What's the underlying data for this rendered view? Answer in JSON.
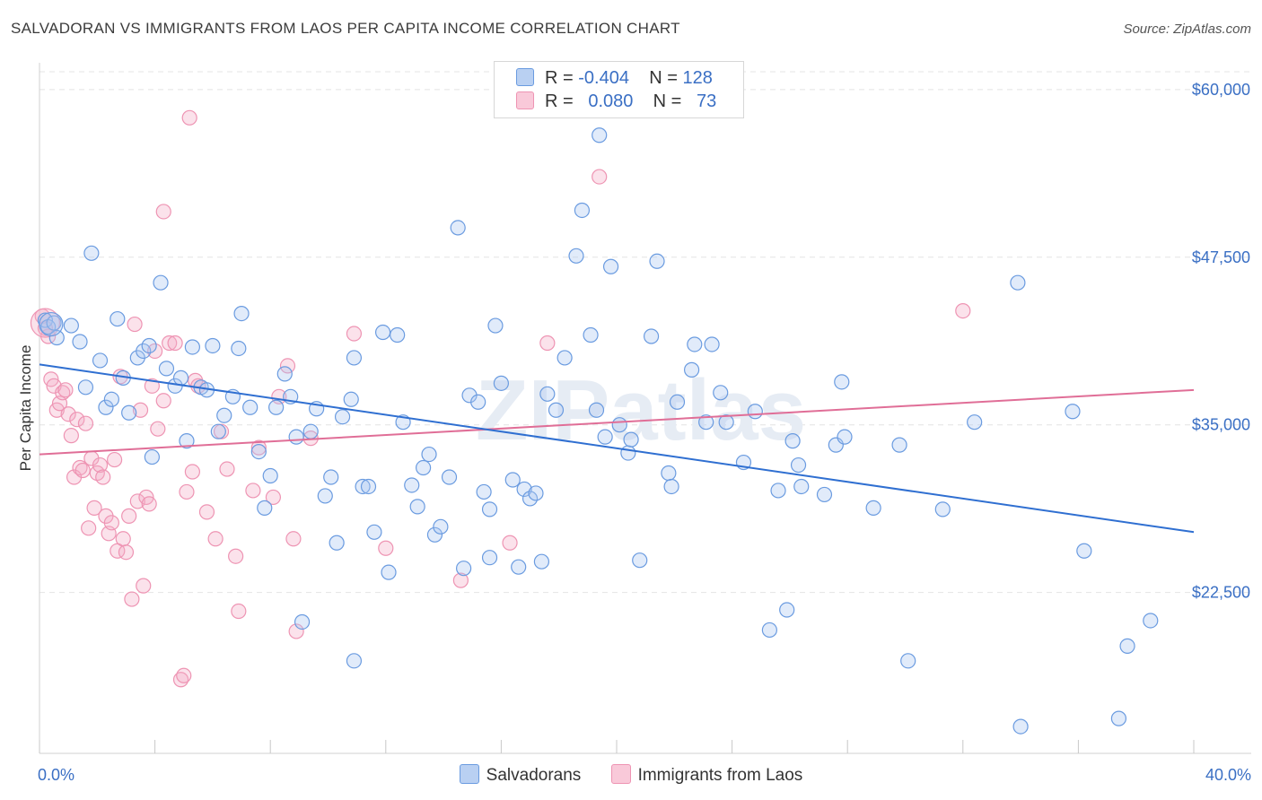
{
  "title": "SALVADORAN VS IMMIGRANTS FROM LAOS PER CAPITA INCOME CORRELATION CHART",
  "source": "Source: ZipAtlas.com",
  "watermark": "ZIPatlas",
  "legend": {
    "rows": [
      {
        "r_label": "R =",
        "r_value": "-0.404",
        "n_label": "N =",
        "n_value": "128"
      },
      {
        "r_label": "R =",
        "r_value": "0.080",
        "n_label": "N =",
        "n_value": "73"
      }
    ]
  },
  "bottom_legend": [
    "Salvadorans",
    "Immigrants from Laos"
  ],
  "colors": {
    "blue": "#6a9be0",
    "blue_line": "#2f6fd1",
    "pink": "#ee94b3",
    "pink_line": "#e06e97",
    "tick_label": "#3a6fc4"
  },
  "chart_data": {
    "type": "scatter",
    "title": "SALVADORAN VS IMMIGRANTS FROM LAOS PER CAPITA INCOME CORRELATION CHART",
    "xlabel": "",
    "ylabel": "Per Capita Income",
    "xlim": [
      0,
      40
    ],
    "ylim": [
      10500,
      62000
    ],
    "x_tick_labels": [
      "0.0%",
      "40.0%"
    ],
    "y_ticks": [
      22500,
      35000,
      47500,
      60000
    ],
    "y_tick_labels": [
      "$22,500",
      "$35,000",
      "$47,500",
      "$60,000"
    ],
    "grid": true,
    "series": [
      {
        "name": "Salvadorans",
        "color": "#6a9be0",
        "trend": {
          "x": [
            0,
            40
          ],
          "y": [
            39500,
            27000
          ]
        },
        "points": [
          [
            0.2,
            42.8
          ],
          [
            0.3,
            42.3
          ],
          [
            0.5,
            42.6
          ],
          [
            0.6,
            41.5
          ],
          [
            1.1,
            42.4
          ],
          [
            1.4,
            41.2
          ],
          [
            1.6,
            37.8
          ],
          [
            1.8,
            47.8
          ],
          [
            2.1,
            39.8
          ],
          [
            2.3,
            36.3
          ],
          [
            2.5,
            36.9
          ],
          [
            2.7,
            42.9
          ],
          [
            2.9,
            38.5
          ],
          [
            3.1,
            35.9
          ],
          [
            3.4,
            40.0
          ],
          [
            3.6,
            40.5
          ],
          [
            3.8,
            40.9
          ],
          [
            3.9,
            32.6
          ],
          [
            4.2,
            45.6
          ],
          [
            4.4,
            39.2
          ],
          [
            4.7,
            37.9
          ],
          [
            4.9,
            38.5
          ],
          [
            5.1,
            33.8
          ],
          [
            5.3,
            40.8
          ],
          [
            5.6,
            37.8
          ],
          [
            5.8,
            37.6
          ],
          [
            6.0,
            40.9
          ],
          [
            6.2,
            34.5
          ],
          [
            6.4,
            35.7
          ],
          [
            6.7,
            37.1
          ],
          [
            6.9,
            40.7
          ],
          [
            7.0,
            43.3
          ],
          [
            7.3,
            36.3
          ],
          [
            7.6,
            33.0
          ],
          [
            7.8,
            28.8
          ],
          [
            8.0,
            31.2
          ],
          [
            8.2,
            36.3
          ],
          [
            8.5,
            38.8
          ],
          [
            8.7,
            37.1
          ],
          [
            8.9,
            34.1
          ],
          [
            9.1,
            20.3
          ],
          [
            9.4,
            34.5
          ],
          [
            9.6,
            36.2
          ],
          [
            9.9,
            29.7
          ],
          [
            10.1,
            31.1
          ],
          [
            10.3,
            26.2
          ],
          [
            10.5,
            35.6
          ],
          [
            10.8,
            36.9
          ],
          [
            10.9,
            40.0
          ],
          [
            11.2,
            30.4
          ],
          [
            11.4,
            30.4
          ],
          [
            11.6,
            27.0
          ],
          [
            11.9,
            41.9
          ],
          [
            12.1,
            24.0
          ],
          [
            12.4,
            41.7
          ],
          [
            12.6,
            35.2
          ],
          [
            12.9,
            30.5
          ],
          [
            13.1,
            28.9
          ],
          [
            13.3,
            31.8
          ],
          [
            13.5,
            32.8
          ],
          [
            13.7,
            26.8
          ],
          [
            13.9,
            27.4
          ],
          [
            14.2,
            31.1
          ],
          [
            14.5,
            49.7
          ],
          [
            14.7,
            24.3
          ],
          [
            14.9,
            37.2
          ],
          [
            15.2,
            36.7
          ],
          [
            15.4,
            30.0
          ],
          [
            15.6,
            28.7
          ],
          [
            15.8,
            42.4
          ],
          [
            16.0,
            38.1
          ],
          [
            16.4,
            30.9
          ],
          [
            16.6,
            24.4
          ],
          [
            16.8,
            30.2
          ],
          [
            17.0,
            29.5
          ],
          [
            17.2,
            29.9
          ],
          [
            17.4,
            24.8
          ],
          [
            17.6,
            37.3
          ],
          [
            17.9,
            36.1
          ],
          [
            18.2,
            40.0
          ],
          [
            18.6,
            47.6
          ],
          [
            18.8,
            51.0
          ],
          [
            19.1,
            41.7
          ],
          [
            19.3,
            36.1
          ],
          [
            19.4,
            56.6
          ],
          [
            19.6,
            34.1
          ],
          [
            19.8,
            46.8
          ],
          [
            20.1,
            35.0
          ],
          [
            20.4,
            32.9
          ],
          [
            20.8,
            24.9
          ],
          [
            21.2,
            41.6
          ],
          [
            21.4,
            47.2
          ],
          [
            21.8,
            31.4
          ],
          [
            21.9,
            30.4
          ],
          [
            22.1,
            36.7
          ],
          [
            22.6,
            39.1
          ],
          [
            22.7,
            41.0
          ],
          [
            23.1,
            35.2
          ],
          [
            23.3,
            41.0
          ],
          [
            23.6,
            37.4
          ],
          [
            23.8,
            35.2
          ],
          [
            24.4,
            32.2
          ],
          [
            24.8,
            36.0
          ],
          [
            25.3,
            19.7
          ],
          [
            25.6,
            30.1
          ],
          [
            25.9,
            21.2
          ],
          [
            26.1,
            33.8
          ],
          [
            26.3,
            32.0
          ],
          [
            26.4,
            30.4
          ],
          [
            27.2,
            29.8
          ],
          [
            27.6,
            33.5
          ],
          [
            27.8,
            38.2
          ],
          [
            27.9,
            34.1
          ],
          [
            28.9,
            28.8
          ],
          [
            29.8,
            33.5
          ],
          [
            30.1,
            17.4
          ],
          [
            31.3,
            28.7
          ],
          [
            32.4,
            35.2
          ],
          [
            33.9,
            45.6
          ],
          [
            34.0,
            12.5
          ],
          [
            35.8,
            36.0
          ],
          [
            36.2,
            25.6
          ],
          [
            37.4,
            13.1
          ],
          [
            37.7,
            18.5
          ],
          [
            38.5,
            20.4
          ],
          [
            20.5,
            33.9
          ],
          [
            15.6,
            25.1
          ],
          [
            10.9,
            17.4
          ]
        ]
      },
      {
        "name": "Immigrants from Laos",
        "color": "#ee94b3",
        "trend": {
          "x": [
            0,
            40
          ],
          "y": [
            32800,
            37600
          ]
        },
        "points": [
          [
            0.1,
            43.1
          ],
          [
            0.2,
            42.2
          ],
          [
            0.3,
            41.6
          ],
          [
            0.4,
            38.4
          ],
          [
            0.5,
            37.9
          ],
          [
            0.6,
            36.1
          ],
          [
            0.7,
            36.6
          ],
          [
            0.8,
            37.4
          ],
          [
            0.9,
            37.6
          ],
          [
            1.0,
            35.8
          ],
          [
            1.1,
            34.2
          ],
          [
            1.2,
            31.1
          ],
          [
            1.3,
            35.4
          ],
          [
            1.4,
            31.8
          ],
          [
            1.5,
            31.6
          ],
          [
            1.6,
            35.1
          ],
          [
            1.7,
            27.3
          ],
          [
            1.8,
            32.5
          ],
          [
            1.9,
            28.8
          ],
          [
            2.0,
            31.4
          ],
          [
            2.1,
            32.0
          ],
          [
            2.2,
            31.1
          ],
          [
            2.3,
            28.2
          ],
          [
            2.4,
            26.9
          ],
          [
            2.5,
            27.7
          ],
          [
            2.6,
            32.4
          ],
          [
            2.7,
            25.6
          ],
          [
            2.8,
            38.6
          ],
          [
            2.9,
            26.5
          ],
          [
            3.0,
            25.5
          ],
          [
            3.1,
            28.2
          ],
          [
            3.2,
            22.0
          ],
          [
            3.3,
            42.5
          ],
          [
            3.4,
            29.3
          ],
          [
            3.5,
            36.1
          ],
          [
            3.6,
            23.0
          ],
          [
            3.7,
            29.6
          ],
          [
            3.8,
            29.1
          ],
          [
            3.9,
            37.9
          ],
          [
            4.0,
            40.5
          ],
          [
            4.1,
            34.7
          ],
          [
            4.3,
            36.8
          ],
          [
            4.3,
            50.9
          ],
          [
            4.5,
            41.1
          ],
          [
            4.7,
            41.1
          ],
          [
            4.9,
            16.0
          ],
          [
            5.0,
            16.3
          ],
          [
            5.1,
            30.0
          ],
          [
            5.2,
            57.9
          ],
          [
            5.3,
            31.5
          ],
          [
            5.4,
            38.3
          ],
          [
            5.5,
            37.9
          ],
          [
            5.8,
            28.5
          ],
          [
            6.1,
            26.5
          ],
          [
            6.3,
            34.5
          ],
          [
            6.5,
            31.7
          ],
          [
            6.8,
            25.2
          ],
          [
            6.9,
            21.1
          ],
          [
            7.4,
            30.1
          ],
          [
            7.6,
            33.3
          ],
          [
            8.1,
            29.6
          ],
          [
            8.3,
            37.1
          ],
          [
            8.6,
            39.4
          ],
          [
            8.8,
            26.5
          ],
          [
            8.9,
            19.6
          ],
          [
            9.4,
            34.0
          ],
          [
            10.9,
            41.8
          ],
          [
            12.0,
            25.8
          ],
          [
            14.6,
            23.4
          ],
          [
            16.3,
            26.2
          ],
          [
            17.6,
            41.1
          ],
          [
            19.4,
            53.5
          ],
          [
            32.0,
            43.5
          ]
        ]
      }
    ]
  }
}
